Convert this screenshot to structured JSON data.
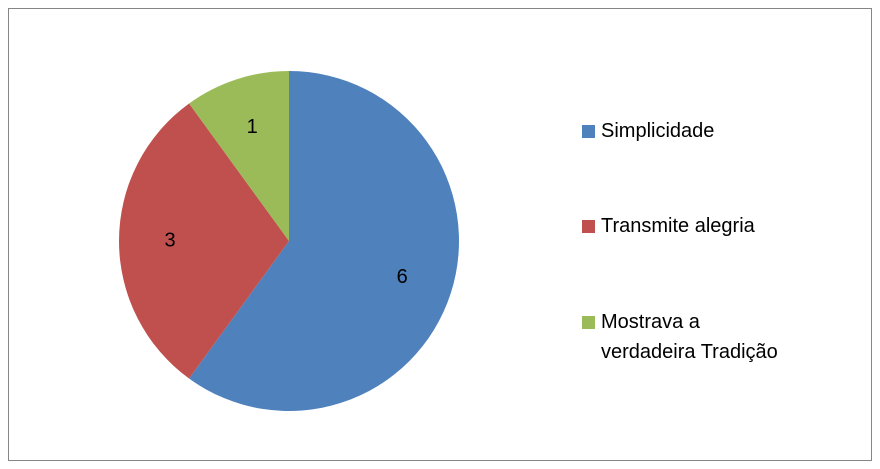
{
  "chart_data": {
    "type": "pie",
    "categories": [
      "Simplicidade",
      "Transmite alegria",
      "Mostrava a verdadeira Tradição"
    ],
    "values": [
      6,
      3,
      1
    ],
    "colors": [
      "#4f81bd",
      "#c0504d",
      "#9bbb59"
    ],
    "legend": "right"
  }
}
